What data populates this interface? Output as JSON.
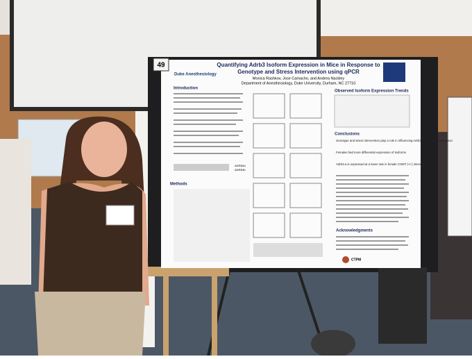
{
  "poster": {
    "number": "49",
    "title_line1": "Quantifying Adrb3 Isoform Expression in Mice in Response to",
    "title_line2": "Genotype and Stress Intervention using qPCR",
    "authors": "Monica Rashkov, Jose Camacho, and Andrea Nackley",
    "affiliation": "Department of Anesthesiology, Duke University, Durham, NC 27710",
    "logo": "Duke Anesthesiology",
    "sections": {
      "introduction": "Introduction",
      "methods": "Methods",
      "trends": "Observed Isoform Expression Trends",
      "conclusions": "Conclusions",
      "acknowledgments": "Acknowledgments"
    },
    "conclusions": [
      "Genotype and stress intervention play a role in influencing Adrb3 and Adrb2b expression",
      "Females had more differential expression of isoforms",
      "Adrb3-a is expressed at a lower rate in female COMT (+/-) intervention mice"
    ],
    "legend": [
      "ADRB3a",
      "ADRB3b"
    ],
    "footer_logo": "CTPM"
  }
}
